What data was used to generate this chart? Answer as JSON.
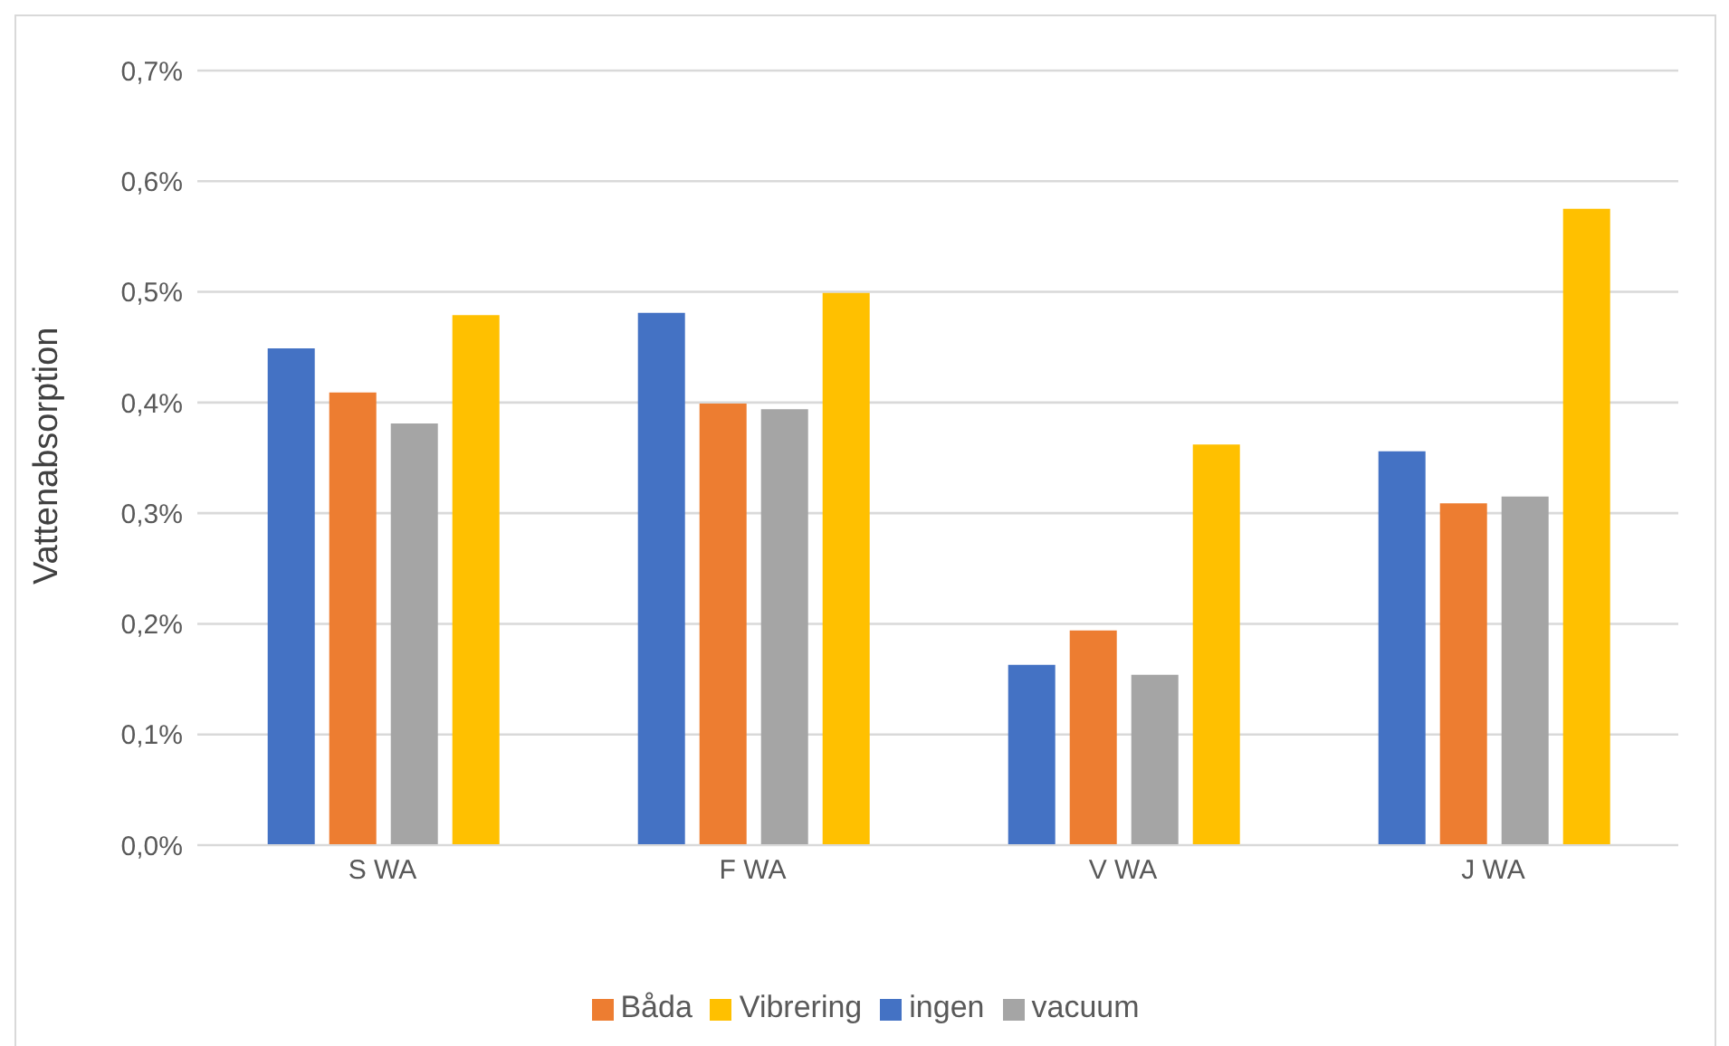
{
  "chart_data": {
    "type": "bar",
    "ylabel": "Vattenabsorption",
    "categories": [
      "S WA",
      "F WA",
      "V WA",
      "J WA"
    ],
    "series": [
      {
        "name": "ingen",
        "color": "#4472c4",
        "values": [
          0.449,
          0.481,
          0.163,
          0.356
        ]
      },
      {
        "name": "Båda",
        "color": "#ed7d31",
        "values": [
          0.409,
          0.399,
          0.194,
          0.309
        ]
      },
      {
        "name": "vacuum",
        "color": "#a5a5a5",
        "values": [
          0.381,
          0.394,
          0.154,
          0.315
        ]
      },
      {
        "name": "Vibrering",
        "color": "#ffc000",
        "values": [
          0.479,
          0.499,
          0.362,
          0.575
        ]
      }
    ],
    "ylim": [
      0,
      0.7
    ],
    "yticks": [
      {
        "value": 0,
        "label": "0,0%"
      },
      {
        "value": 0.1,
        "label": "0,1%"
      },
      {
        "value": 0.2,
        "label": "0,2%"
      },
      {
        "value": 0.3,
        "label": "0,3%"
      },
      {
        "value": 0.4,
        "label": "0,4%"
      },
      {
        "value": 0.5,
        "label": "0,5%"
      },
      {
        "value": 0.6,
        "label": "0,6%"
      },
      {
        "value": 0.7,
        "label": "0,7%"
      }
    ],
    "grid": "y",
    "legend": "bottom"
  }
}
